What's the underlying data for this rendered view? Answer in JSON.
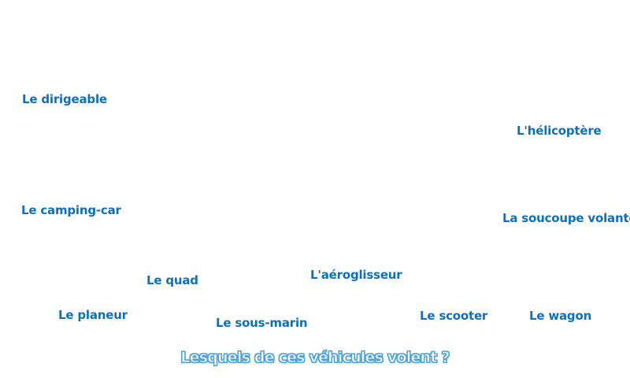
{
  "colors": {
    "label": "#0f6fb7",
    "question_fill": "#ffffff",
    "question_outline": "#4aa3dc",
    "background": "#ffffff"
  },
  "vehicles": [
    {
      "label": "Le dirigeable"
    },
    {
      "label": "L'hélicoptère"
    },
    {
      "label": "Le camping-car"
    },
    {
      "label": "La soucoupe volante"
    },
    {
      "label": "Le quad"
    },
    {
      "label": "L'aéroglisseur"
    },
    {
      "label": "Le planeur"
    },
    {
      "label": "Le sous-marin"
    },
    {
      "label": "Le scooter"
    },
    {
      "label": "Le wagon"
    }
  ],
  "question": "Lesquels de ces véhicules volent ?"
}
